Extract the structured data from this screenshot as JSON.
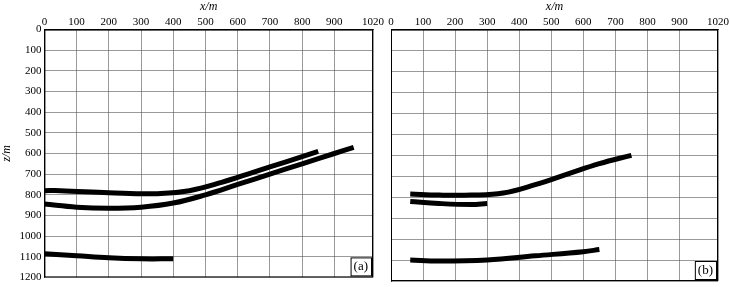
{
  "chart_data": [
    {
      "type": "line",
      "annotation": "(a)",
      "x_label": "x/m",
      "y_label": "z/m",
      "xlim": [
        0,
        1020
      ],
      "xticks": [
        0,
        100,
        200,
        300,
        400,
        500,
        600,
        700,
        800,
        900,
        1020
      ],
      "ylim": [
        1200,
        0
      ],
      "yticks": [
        0,
        100,
        200,
        300,
        400,
        500,
        600,
        700,
        800,
        900,
        1000,
        1100,
        1200
      ],
      "grid": true,
      "series": [
        {
          "color": "#000000",
          "x": [
            0,
            50,
            200,
            350,
            450,
            550,
            650,
            750,
            850
          ],
          "values": [
            780,
            780,
            790,
            795,
            780,
            740,
            690,
            640,
            590
          ]
        },
        {
          "color": "#000000",
          "x": [
            0,
            100,
            200,
            300,
            400,
            500,
            600,
            700,
            800,
            900,
            960
          ],
          "values": [
            845,
            860,
            865,
            860,
            840,
            800,
            750,
            700,
            650,
            600,
            570
          ]
        },
        {
          "color": "#000000",
          "x": [
            0,
            100,
            200,
            300,
            400
          ],
          "values": [
            1085,
            1095,
            1105,
            1110,
            1110
          ]
        }
      ]
    },
    {
      "type": "line",
      "annotation": "(b)",
      "x_label": "x/m",
      "xlim": [
        0,
        1020
      ],
      "xticks": [
        0,
        100,
        200,
        300,
        400,
        500,
        600,
        700,
        800,
        900,
        1020
      ],
      "ylim": [
        1200,
        0
      ],
      "yticks": [
        0,
        100,
        200,
        300,
        400,
        500,
        600,
        700,
        800,
        900,
        1000,
        1100,
        1200
      ],
      "grid": true,
      "tick_labels": "x",
      "series": [
        {
          "color": "#000000",
          "x": [
            60,
            150,
            250,
            350,
            450,
            550,
            650,
            750
          ],
          "values": [
            785,
            790,
            790,
            780,
            740,
            690,
            640,
            600
          ]
        },
        {
          "color": "#000000",
          "x": [
            60,
            150,
            250,
            300
          ],
          "values": [
            820,
            830,
            835,
            830
          ]
        },
        {
          "color": "#000000",
          "x": [
            60,
            150,
            300,
            450,
            600,
            650
          ],
          "values": [
            1100,
            1105,
            1100,
            1080,
            1060,
            1050
          ]
        }
      ]
    }
  ]
}
